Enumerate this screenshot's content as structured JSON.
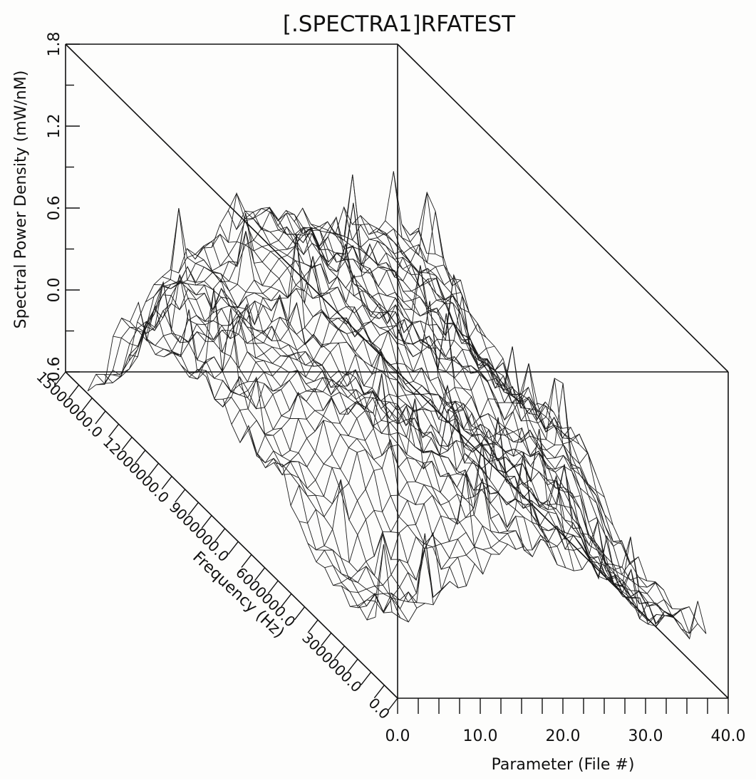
{
  "chart_data": {
    "type": "surface3d",
    "title": "[.SPECTRA1]RFATEST",
    "zlabel": "Spectral Power Density (mW/nM)",
    "xlabel": "Parameter (File #)",
    "ylabel": "Frequency (Hz)",
    "x_ticks": [
      "0.0",
      "10.0",
      "20.0",
      "30.0",
      "40.0"
    ],
    "y_ticks": [
      "15000000.0",
      "12000000.0",
      "9000000.0",
      "6000000.0",
      "3000000.0",
      "0.0"
    ],
    "z_ticks": [
      "-0.6",
      "0.0",
      "0.6",
      "1.2",
      "1.8"
    ],
    "xlim": [
      0,
      40
    ],
    "ylim": [
      0,
      15000000
    ],
    "zlim": [
      -0.6,
      1.8
    ],
    "grid": false,
    "surface_samples": [
      {
        "parameter": 0,
        "frequency_hz": 14000000,
        "spd": -0.55
      },
      {
        "parameter": 0,
        "frequency_hz": 12000000,
        "spd": 0.25
      },
      {
        "parameter": 0,
        "frequency_hz": 9000000,
        "spd": 0.3
      },
      {
        "parameter": 0,
        "frequency_hz": 6000000,
        "spd": 0.15
      },
      {
        "parameter": 0,
        "frequency_hz": 3000000,
        "spd": -0.2
      },
      {
        "parameter": 10,
        "frequency_hz": 12000000,
        "spd": 0.45
      },
      {
        "parameter": 10,
        "frequency_hz": 9000000,
        "spd": 0.55
      },
      {
        "parameter": 10,
        "frequency_hz": 6000000,
        "spd": 0.6
      },
      {
        "parameter": 20,
        "frequency_hz": 12000000,
        "spd": 0.8
      },
      {
        "parameter": 20,
        "frequency_hz": 9000000,
        "spd": 0.7
      },
      {
        "parameter": 20,
        "frequency_hz": 6000000,
        "spd": 0.5
      },
      {
        "parameter": 30,
        "frequency_hz": 12000000,
        "spd": 0.65
      },
      {
        "parameter": 30,
        "frequency_hz": 9000000,
        "spd": 0.55
      },
      {
        "parameter": 30,
        "frequency_hz": 6000000,
        "spd": 0.35
      },
      {
        "parameter": 40,
        "frequency_hz": 9000000,
        "spd": 0.2
      },
      {
        "parameter": 40,
        "frequency_hz": 3000000,
        "spd": -0.3
      }
    ]
  }
}
